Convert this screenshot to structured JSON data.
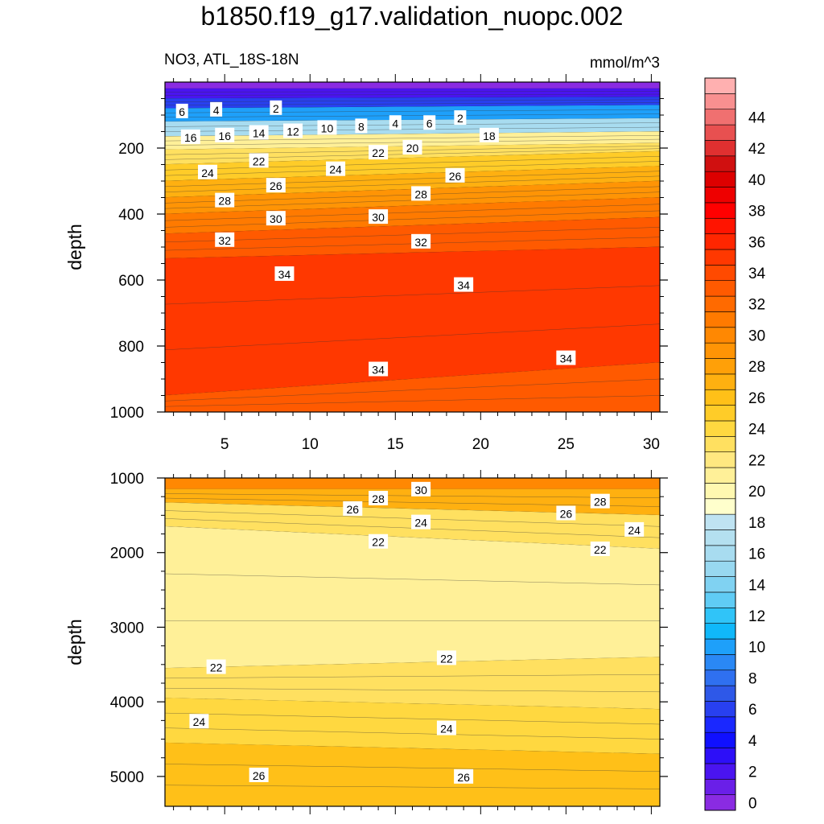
{
  "title": "b1850.f19_g17.validation_nuopc.002",
  "subtitle_left": "NO3, ATL_18S-18N",
  "units": "mmol/m^3",
  "chart_data": [
    {
      "type": "contour",
      "panel": "upper",
      "xlabel": "",
      "ylabel": "depth",
      "xlim": [
        1.5,
        30.5
      ],
      "ylim": [
        1000,
        0
      ],
      "xticks": [
        5,
        10,
        15,
        20,
        25,
        30
      ],
      "yticks": [
        200,
        400,
        600,
        800,
        1000
      ],
      "bands": [
        {
          "depth_left": 20,
          "depth_right": 20,
          "value": 0
        },
        {
          "depth_left": 50,
          "depth_right": 45,
          "value": 2
        },
        {
          "depth_left": 80,
          "depth_right": 70,
          "value": 6
        },
        {
          "depth_left": 120,
          "depth_right": 110,
          "value": 10
        },
        {
          "depth_left": 165,
          "depth_right": 150,
          "value": 16
        },
        {
          "depth_left": 205,
          "depth_right": 185,
          "value": 21
        },
        {
          "depth_left": 250,
          "depth_right": 210,
          "value": 23
        },
        {
          "depth_left": 300,
          "depth_right": 255,
          "value": 25
        },
        {
          "depth_left": 350,
          "depth_right": 300,
          "value": 27
        },
        {
          "depth_left": 400,
          "depth_right": 350,
          "value": 29
        },
        {
          "depth_left": 460,
          "depth_right": 410,
          "value": 31
        },
        {
          "depth_left": 535,
          "depth_right": 500,
          "value": 33
        },
        {
          "depth_left": 950,
          "depth_right": 850,
          "value": 34.5
        },
        {
          "depth_left": 1000,
          "depth_right": 1000,
          "value": 33
        }
      ],
      "contour_labels": [
        {
          "x": 2.5,
          "depth": 90,
          "text": "6"
        },
        {
          "x": 4.5,
          "depth": 85,
          "text": "4"
        },
        {
          "x": 8.0,
          "depth": 80,
          "text": "2"
        },
        {
          "x": 9.0,
          "depth": 150,
          "text": "12"
        },
        {
          "x": 11.0,
          "depth": 140,
          "text": "10"
        },
        {
          "x": 13.0,
          "depth": 135,
          "text": "8"
        },
        {
          "x": 15.0,
          "depth": 125,
          "text": "4"
        },
        {
          "x": 17.0,
          "depth": 125,
          "text": "6"
        },
        {
          "x": 18.8,
          "depth": 110,
          "text": "2"
        },
        {
          "x": 3.0,
          "depth": 168,
          "text": "16"
        },
        {
          "x": 5.0,
          "depth": 163,
          "text": "16"
        },
        {
          "x": 7.0,
          "depth": 155,
          "text": "14"
        },
        {
          "x": 20.5,
          "depth": 163,
          "text": "18"
        },
        {
          "x": 16.0,
          "depth": 200,
          "text": "20"
        },
        {
          "x": 14.0,
          "depth": 215,
          "text": "22"
        },
        {
          "x": 7.0,
          "depth": 240,
          "text": "22"
        },
        {
          "x": 4.0,
          "depth": 275,
          "text": "24"
        },
        {
          "x": 11.5,
          "depth": 265,
          "text": "24"
        },
        {
          "x": 8.0,
          "depth": 315,
          "text": "26"
        },
        {
          "x": 18.5,
          "depth": 285,
          "text": "26"
        },
        {
          "x": 5.0,
          "depth": 360,
          "text": "28"
        },
        {
          "x": 16.5,
          "depth": 340,
          "text": "28"
        },
        {
          "x": 8.0,
          "depth": 415,
          "text": "30"
        },
        {
          "x": 14.0,
          "depth": 410,
          "text": "30"
        },
        {
          "x": 5.0,
          "depth": 480,
          "text": "32"
        },
        {
          "x": 16.5,
          "depth": 485,
          "text": "32"
        },
        {
          "x": 8.5,
          "depth": 583,
          "text": "34"
        },
        {
          "x": 19.0,
          "depth": 616,
          "text": "34"
        },
        {
          "x": 14.0,
          "depth": 872,
          "text": "34"
        },
        {
          "x": 25.0,
          "depth": 838,
          "text": "34"
        }
      ]
    },
    {
      "type": "contour",
      "panel": "lower",
      "xlabel": "",
      "ylabel": "depth",
      "xlim": [
        1.5,
        30.5
      ],
      "ylim": [
        5400,
        1000
      ],
      "yticks": [
        1000,
        2000,
        3000,
        4000,
        5000
      ],
      "bands": [
        {
          "depth_left": 1150,
          "depth_right": 1150,
          "value": 30
        },
        {
          "depth_left": 1330,
          "depth_right": 1500,
          "value": 27
        },
        {
          "depth_left": 1650,
          "depth_right": 1950,
          "value": 23
        },
        {
          "depth_left": 3550,
          "depth_right": 3400,
          "value": 21
        },
        {
          "depth_left": 3950,
          "depth_right": 4100,
          "value": 22.5
        },
        {
          "depth_left": 4550,
          "depth_right": 4700,
          "value": 24
        },
        {
          "depth_left": 5400,
          "depth_right": 5400,
          "value": 26
        }
      ],
      "contour_labels": [
        {
          "x": 16.5,
          "depth": 1160,
          "text": "30"
        },
        {
          "x": 14.0,
          "depth": 1280,
          "text": "28"
        },
        {
          "x": 12.5,
          "depth": 1420,
          "text": "26"
        },
        {
          "x": 16.5,
          "depth": 1600,
          "text": "24"
        },
        {
          "x": 14.0,
          "depth": 1860,
          "text": "22"
        },
        {
          "x": 27.0,
          "depth": 1320,
          "text": "28"
        },
        {
          "x": 25.0,
          "depth": 1480,
          "text": "26"
        },
        {
          "x": 29.0,
          "depth": 1700,
          "text": "24"
        },
        {
          "x": 27.0,
          "depth": 1960,
          "text": "22"
        },
        {
          "x": 4.5,
          "depth": 3540,
          "text": "22"
        },
        {
          "x": 18.0,
          "depth": 3420,
          "text": "22"
        },
        {
          "x": 3.5,
          "depth": 4270,
          "text": "24"
        },
        {
          "x": 18.0,
          "depth": 4360,
          "text": "24"
        },
        {
          "x": 7.0,
          "depth": 4990,
          "text": "26"
        },
        {
          "x": 19.0,
          "depth": 5010,
          "text": "26"
        }
      ]
    }
  ],
  "colorbar": {
    "tick_labels": [
      "0",
      "2",
      "4",
      "6",
      "8",
      "10",
      "12",
      "14",
      "16",
      "18",
      "20",
      "22",
      "24",
      "26",
      "28",
      "30",
      "32",
      "34",
      "36",
      "38",
      "40",
      "42",
      "44"
    ],
    "levels": [
      0,
      2,
      4,
      6,
      8,
      10,
      12,
      14,
      16,
      18,
      20,
      22,
      24,
      26,
      28,
      30,
      32,
      34,
      36,
      38,
      40,
      42,
      44
    ],
    "colors": [
      "#8a2be2",
      "#6a1fe8",
      "#4a14f0",
      "#2d0ff8",
      "#1010ff",
      "#1a28ff",
      "#2840f0",
      "#2e58e8",
      "#2f70f0",
      "#2a88f5",
      "#1ea0fa",
      "#10b8fa",
      "#30c4f8",
      "#60ccf5",
      "#80d2f2",
      "#98d8f0",
      "#a8dcf0",
      "#b4e0f0",
      "#bfe3f2",
      "#ffffcc",
      "#fff8b0",
      "#fff098",
      "#ffe880",
      "#ffe060",
      "#ffd840",
      "#ffcc28",
      "#ffc018",
      "#ffb010",
      "#ffa008",
      "#ff9405",
      "#ff8802",
      "#ff7a00",
      "#ff6a00",
      "#ff5a00",
      "#ff4a00",
      "#ff3800",
      "#ff2600",
      "#ff1400",
      "#ff0000",
      "#ee0000",
      "#dd0000",
      "#d01010",
      "#e03030",
      "#e85050",
      "#f07070",
      "#f89090",
      "#ffb0b0"
    ]
  }
}
